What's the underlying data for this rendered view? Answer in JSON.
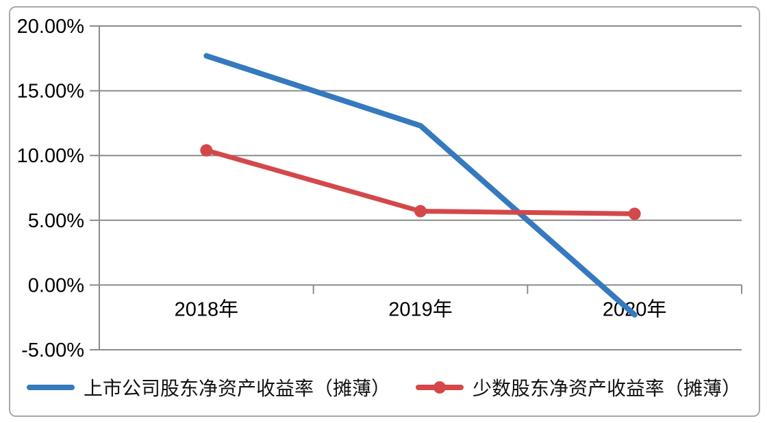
{
  "chart_data": {
    "type": "line",
    "categories": [
      "2018年",
      "2019年",
      "2020年"
    ],
    "series": [
      {
        "name": "上市公司股东净资产收益率（摊薄）",
        "color": "#3579be",
        "marker": "none",
        "line_width": 8,
        "values": [
          17.7,
          12.3,
          -2.3
        ]
      },
      {
        "name": "少数股东净资产收益率（摊薄）",
        "color": "#d4484a",
        "marker": "circle",
        "line_width": 7,
        "values": [
          10.4,
          5.7,
          5.5
        ]
      }
    ],
    "title": "",
    "xlabel": "",
    "ylabel": "",
    "y_ticks": [
      {
        "value": 20,
        "label": "20.00%"
      },
      {
        "value": 15,
        "label": "15.00%"
      },
      {
        "value": 10,
        "label": "10.00%"
      },
      {
        "value": 5,
        "label": "5.00%"
      },
      {
        "value": 0,
        "label": "0.00%"
      },
      {
        "value": -5,
        "label": "-5.00%"
      }
    ],
    "ylim": [
      -5,
      20
    ],
    "grid": "horizontal",
    "legend_position": "bottom"
  },
  "colors": {
    "grid_line": "#8a8a8a",
    "axis_line": "#8a8a8a",
    "tick_text": "#000000",
    "frame_border": "#a8a8a8",
    "background": "#ffffff"
  }
}
